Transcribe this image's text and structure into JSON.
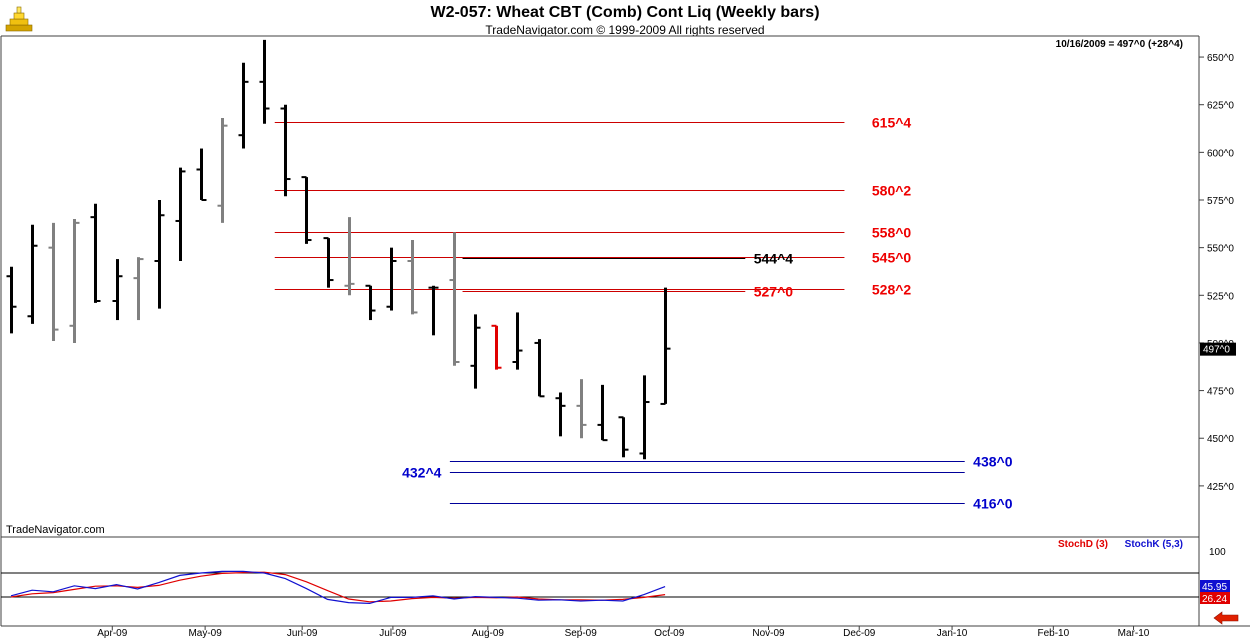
{
  "header": {
    "title": "W2-057:  Wheat CBT (Comb) Cont Liq  (Weekly bars)",
    "subtitle": "TradeNavigator.com © 1999-2009 All rights reserved",
    "last_info": "10/16/2009 = 497^0 (+28^4)",
    "watermark": "TradeNavigator.com",
    "icons": [
      "gold-logo-icon",
      "left-arrow-icon"
    ]
  },
  "colors": {
    "background": "#ffffff",
    "border": "#404040",
    "bar_black": "#000000",
    "bar_gray": "#808080",
    "bar_red": "#e00000",
    "level_red": "#cc0000",
    "level_blue": "#00009a",
    "stoch_d": "#e00000",
    "stoch_k": "#1010d0",
    "label_red": "#ee0000",
    "label_blue": "#0000cc",
    "price_tag": "#000000",
    "arrow_red": "#e02000"
  },
  "chart_data": [
    {
      "type": "ohlc",
      "title": "W2-057:  Wheat CBT (Comb) Cont Liq  (Weekly bars)",
      "ylim": [
        405,
        660
      ],
      "y_ticks": [
        {
          "value": 650,
          "label": "650^0"
        },
        {
          "value": 625,
          "label": "625^0"
        },
        {
          "value": 600,
          "label": "600^0"
        },
        {
          "value": 575,
          "label": "575^0"
        },
        {
          "value": 550,
          "label": "550^0"
        },
        {
          "value": 525,
          "label": "525^0"
        },
        {
          "value": 500,
          "label": "500^0"
        },
        {
          "value": 475,
          "label": "475^0"
        },
        {
          "value": 450,
          "label": "450^0"
        },
        {
          "value": 425,
          "label": "425^0"
        }
      ],
      "x_ticks": [
        "Apr-09",
        "May-09",
        "Jun-09",
        "Jul-09",
        "Aug-09",
        "Sep-09",
        "Oct-09",
        "Nov-09",
        "Dec-09",
        "Jan-10",
        "Feb-10",
        "Mar-10"
      ],
      "x_tick_weeks": [
        4.8,
        9.2,
        13.8,
        18.1,
        22.6,
        27.0,
        31.2,
        35.9,
        40.2,
        44.6,
        49.4,
        53.2
      ],
      "last_price": {
        "value": 497,
        "label": "497^0"
      },
      "bars": [
        {
          "week": 0,
          "o": 535,
          "h": 540,
          "l": 505,
          "c": 519,
          "color": "black"
        },
        {
          "week": 1,
          "o": 514,
          "h": 562,
          "l": 510,
          "c": 551,
          "color": "black"
        },
        {
          "week": 2,
          "o": 550,
          "h": 563,
          "l": 501,
          "c": 507,
          "color": "gray"
        },
        {
          "week": 3,
          "o": 509,
          "h": 565,
          "l": 500,
          "c": 563,
          "color": "gray"
        },
        {
          "week": 4,
          "o": 566,
          "h": 573,
          "l": 521,
          "c": 522,
          "color": "black"
        },
        {
          "week": 5,
          "o": 522,
          "h": 544,
          "l": 512,
          "c": 535,
          "color": "black"
        },
        {
          "week": 6,
          "o": 534,
          "h": 545,
          "l": 512,
          "c": 544,
          "color": "gray"
        },
        {
          "week": 7,
          "o": 543,
          "h": 575,
          "l": 518,
          "c": 567,
          "color": "black"
        },
        {
          "week": 8,
          "o": 564,
          "h": 592,
          "l": 543,
          "c": 590,
          "color": "black"
        },
        {
          "week": 9,
          "o": 591,
          "h": 602,
          "l": 575,
          "c": 575,
          "color": "black"
        },
        {
          "week": 10,
          "o": 572,
          "h": 618,
          "l": 563,
          "c": 614,
          "color": "gray"
        },
        {
          "week": 11,
          "o": 609,
          "h": 647,
          "l": 602,
          "c": 637,
          "color": "black"
        },
        {
          "week": 12,
          "o": 637,
          "h": 659,
          "l": 615,
          "c": 623,
          "color": "black"
        },
        {
          "week": 13,
          "o": 623,
          "h": 625,
          "l": 577,
          "c": 586,
          "color": "black"
        },
        {
          "week": 14,
          "o": 587,
          "h": 587,
          "l": 552,
          "c": 554,
          "color": "black"
        },
        {
          "week": 15,
          "o": 555,
          "h": 555,
          "l": 529,
          "c": 533,
          "color": "black"
        },
        {
          "week": 16,
          "o": 530,
          "h": 566,
          "l": 525,
          "c": 531,
          "color": "gray"
        },
        {
          "week": 17,
          "o": 530,
          "h": 530,
          "l": 512,
          "c": 517,
          "color": "black"
        },
        {
          "week": 18,
          "o": 519,
          "h": 550,
          "l": 517,
          "c": 543,
          "color": "black"
        },
        {
          "week": 19,
          "o": 543,
          "h": 554,
          "l": 515,
          "c": 516,
          "color": "gray"
        },
        {
          "week": 20,
          "o": 529,
          "h": 530,
          "l": 504,
          "c": 529,
          "color": "black"
        },
        {
          "week": 21,
          "o": 533,
          "h": 558,
          "l": 488,
          "c": 490,
          "color": "gray"
        },
        {
          "week": 22,
          "o": 488,
          "h": 515,
          "l": 476,
          "c": 508,
          "color": "black"
        },
        {
          "week": 23,
          "o": 509,
          "h": 509,
          "l": 486,
          "c": 487,
          "color": "red"
        },
        {
          "week": 24,
          "o": 490,
          "h": 516,
          "l": 486,
          "c": 496,
          "color": "black"
        },
        {
          "week": 25,
          "o": 500,
          "h": 502,
          "l": 472,
          "c": 472,
          "color": "black"
        },
        {
          "week": 26,
          "o": 471,
          "h": 474,
          "l": 451,
          "c": 467,
          "color": "black"
        },
        {
          "week": 27,
          "o": 467,
          "h": 481,
          "l": 450,
          "c": 457,
          "color": "gray"
        },
        {
          "week": 28,
          "o": 457,
          "h": 478,
          "l": 449,
          "c": 449,
          "color": "black"
        },
        {
          "week": 29,
          "o": 461,
          "h": 461,
          "l": 440,
          "c": 444,
          "color": "black"
        },
        {
          "week": 30,
          "o": 442,
          "h": 483,
          "l": 439,
          "c": 469,
          "color": "black"
        },
        {
          "week": 31,
          "o": 468,
          "h": 529,
          "l": 468,
          "c": 497,
          "color": "black"
        }
      ],
      "levels": [
        {
          "name": "level-615",
          "value": 616,
          "label": "615^4",
          "color": "red",
          "start_week": 12.5,
          "end_week": 39.5,
          "label_week": 40.8
        },
        {
          "name": "level-580",
          "value": 580,
          "label": "580^2",
          "color": "red",
          "start_week": 12.5,
          "end_week": 39.5,
          "label_week": 40.8
        },
        {
          "name": "level-558",
          "value": 558,
          "label": "558^0",
          "color": "red",
          "start_week": 12.5,
          "end_week": 39.5,
          "label_week": 40.8
        },
        {
          "name": "level-545",
          "value": 545,
          "label": "545^0",
          "color": "red",
          "start_week": 12.5,
          "end_week": 39.5,
          "label_week": 40.8
        },
        {
          "name": "level-544",
          "value": 544.5,
          "label": "544^4",
          "color": "black",
          "start_week": 21.4,
          "end_week": 34.8,
          "label_week": 35.2
        },
        {
          "name": "level-528",
          "value": 528.5,
          "label": "528^2",
          "color": "red",
          "start_week": 12.5,
          "end_week": 39.5,
          "label_week": 40.8
        },
        {
          "name": "level-527",
          "value": 527,
          "label": "527^0",
          "color": "red",
          "start_week": 21.4,
          "end_week": 34.8,
          "label_week": 35.2
        },
        {
          "name": "level-438",
          "value": 438,
          "label": "438^0",
          "color": "blue",
          "start_week": 20.8,
          "end_week": 45.2,
          "label_week": 45.6
        },
        {
          "name": "level-432",
          "value": 432.5,
          "label": "432^4",
          "color": "blue",
          "start_week": 20.8,
          "end_week": 45.2,
          "label_week": 20.4
        },
        {
          "name": "level-416",
          "value": 416,
          "label": "416^0",
          "color": "blue",
          "start_week": 20.8,
          "end_week": 45.2,
          "label_week": 45.6
        }
      ]
    },
    {
      "type": "line",
      "ylim": [
        0,
        100
      ],
      "y_ticks": [
        {
          "value": 100,
          "label": "100"
        }
      ],
      "reference_lines": [
        80,
        20
      ],
      "legend": [
        {
          "label": "StochD (3)",
          "color": "red"
        },
        {
          "label": "StochK (5,3)",
          "color": "blue"
        }
      ],
      "series": [
        {
          "name": "StochD (3)",
          "values": [
            20,
            28,
            31,
            39,
            47,
            48,
            44,
            49,
            62,
            72,
            79,
            81,
            82,
            76,
            58,
            36,
            15,
            8,
            10,
            16,
            19,
            17,
            19,
            18,
            20,
            15,
            13,
            13,
            12,
            14,
            19,
            26
          ],
          "last": "26.24"
        },
        {
          "name": "StochK (5,3)",
          "values": [
            23,
            37,
            33,
            48,
            41,
            51,
            40,
            56,
            74,
            80,
            84,
            84,
            80,
            66,
            41,
            14,
            6,
            4,
            19,
            19,
            23,
            15,
            21,
            19,
            17,
            12,
            13,
            10,
            12,
            10,
            26,
            46
          ],
          "last": "45.95"
        }
      ]
    }
  ]
}
